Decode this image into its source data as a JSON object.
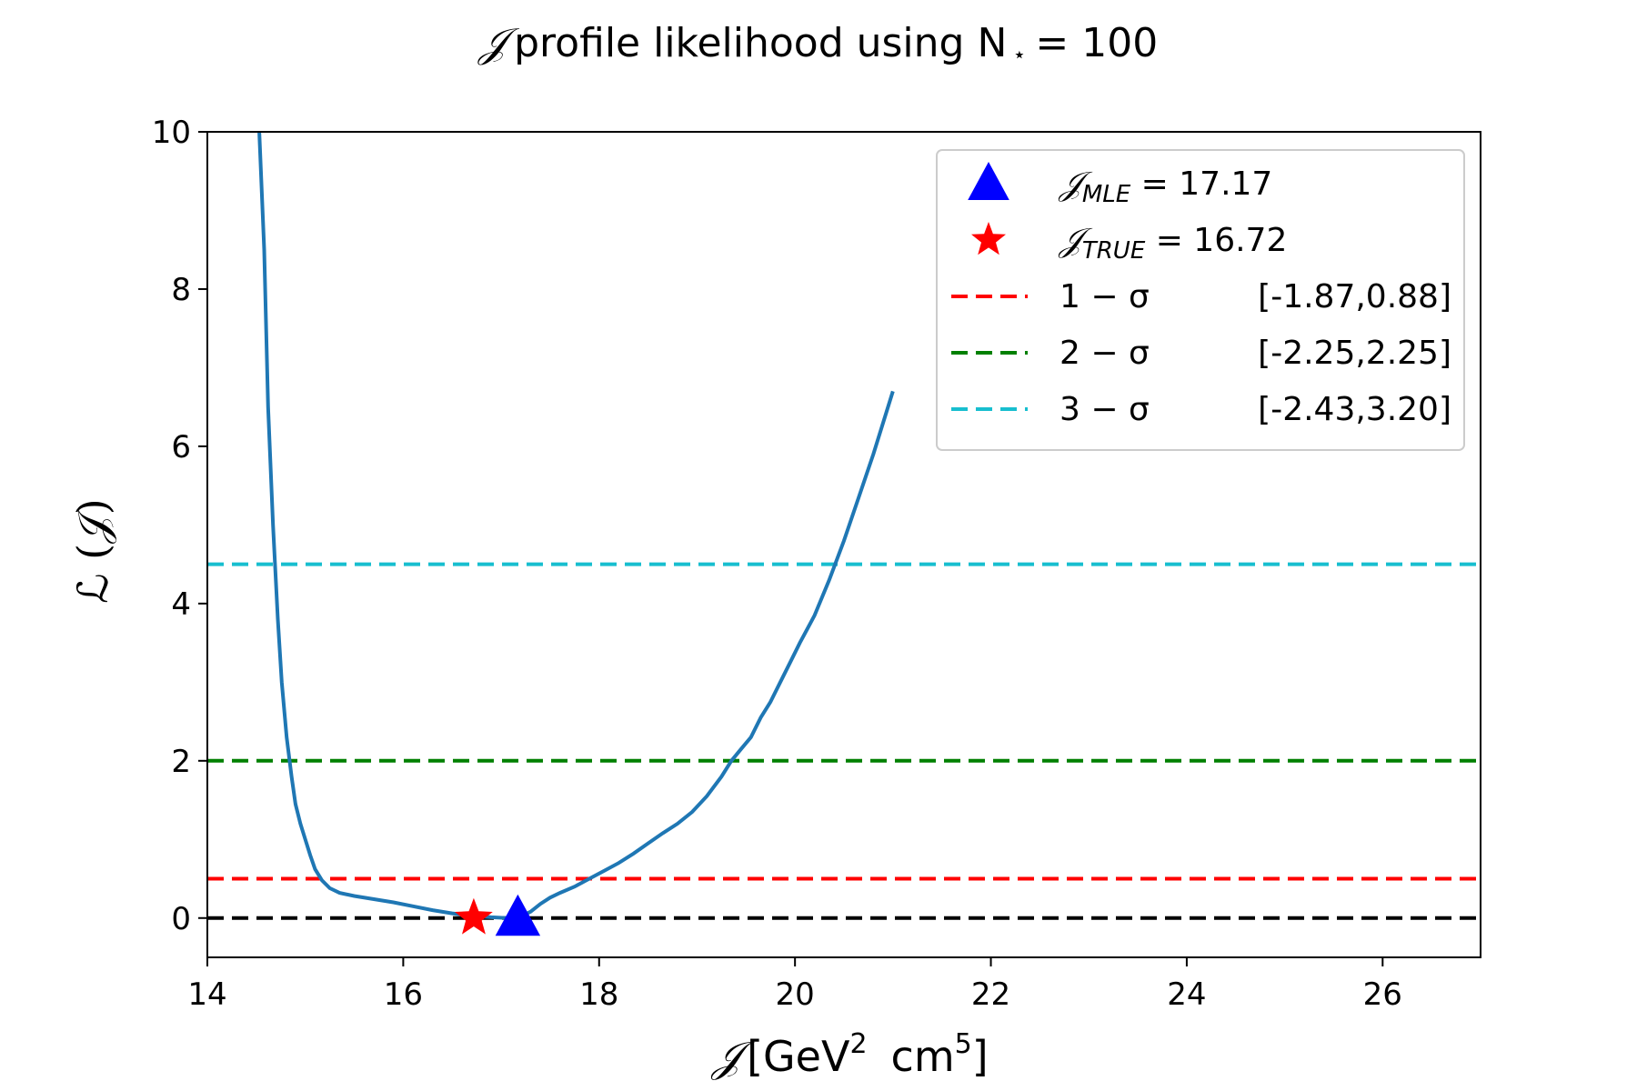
{
  "chart_data": {
    "type": "line",
    "title": {
      "symbol": "𝒥",
      "text": "profile likelihood using N",
      "star": "⋆",
      "suffix": "= 100"
    },
    "xlabel": {
      "symbol": "𝒥",
      "text": "[GeV",
      "sup1": "2",
      "mid": "cm",
      "sup2": "5",
      "end": "]"
    },
    "ylabel": "ℒ (𝒥)",
    "xlim": [
      14,
      27
    ],
    "ylim": [
      -0.5,
      10
    ],
    "xticks": [
      14,
      16,
      18,
      20,
      22,
      24,
      26
    ],
    "yticks": [
      0,
      2,
      4,
      6,
      8,
      10
    ],
    "grid": false,
    "legend_placement": "top-right",
    "series": [
      {
        "color": "#1f77b4",
        "x": [
          14.53,
          14.58,
          14.62,
          14.67,
          14.72,
          14.76,
          14.81,
          14.86,
          14.9,
          14.95,
          15.0,
          15.05,
          15.1,
          15.17,
          15.25,
          15.35,
          15.5,
          15.7,
          15.9,
          16.1,
          16.3,
          16.5,
          16.7,
          16.9,
          17.05,
          17.17,
          17.3,
          17.4,
          17.5,
          17.6,
          17.75,
          17.9,
          18.05,
          18.2,
          18.35,
          18.5,
          18.65,
          18.8,
          18.95,
          19.1,
          19.25,
          19.35,
          19.45,
          19.55,
          19.65,
          19.75,
          19.85,
          19.95,
          20.05,
          20.2,
          20.35,
          20.5,
          20.65,
          20.8,
          21.0
        ],
        "y": [
          10.0,
          8.5,
          6.5,
          5.0,
          3.8,
          3.0,
          2.3,
          1.8,
          1.45,
          1.2,
          1.0,
          0.8,
          0.62,
          0.48,
          0.38,
          0.32,
          0.28,
          0.24,
          0.2,
          0.15,
          0.1,
          0.06,
          0.03,
          0.01,
          0.0,
          0.0,
          0.08,
          0.18,
          0.26,
          0.32,
          0.4,
          0.5,
          0.6,
          0.7,
          0.82,
          0.95,
          1.08,
          1.2,
          1.35,
          1.55,
          1.8,
          2.0,
          2.15,
          2.3,
          2.55,
          2.75,
          3.0,
          3.25,
          3.5,
          3.85,
          4.3,
          4.8,
          5.35,
          5.9,
          6.7
        ]
      }
    ],
    "hlines": [
      {
        "y": 0,
        "color": "#000000",
        "style": "dashed"
      },
      {
        "y": 0.5,
        "color": "#ff0000",
        "style": "dashed"
      },
      {
        "y": 2.0,
        "color": "#008000",
        "style": "dashed"
      },
      {
        "y": 4.5,
        "color": "#17becf",
        "style": "dashed"
      }
    ],
    "markers": [
      {
        "x": 16.72,
        "y": 0,
        "shape": "star",
        "color": "#ff0000"
      },
      {
        "x": 17.17,
        "y": 0,
        "shape": "triangle",
        "color": "#0000ff"
      }
    ],
    "legend": [
      {
        "marker": "triangle",
        "color": "#0000ff",
        "sym": "𝒥",
        "sub": "MLE",
        "value": " = 17.17"
      },
      {
        "marker": "star",
        "color": "#ff0000",
        "sym": "𝒥",
        "sub": "TRUE",
        "value": " = 16.72"
      },
      {
        "marker": "dash",
        "color": "#ff0000",
        "label": "1 − σ",
        "range": "[-1.87,0.88]"
      },
      {
        "marker": "dash",
        "color": "#008000",
        "label": "2 − σ",
        "range": "[-2.25,2.25]"
      },
      {
        "marker": "dash",
        "color": "#17becf",
        "label": "3 − σ",
        "range": "[-2.43,3.20]"
      }
    ]
  }
}
